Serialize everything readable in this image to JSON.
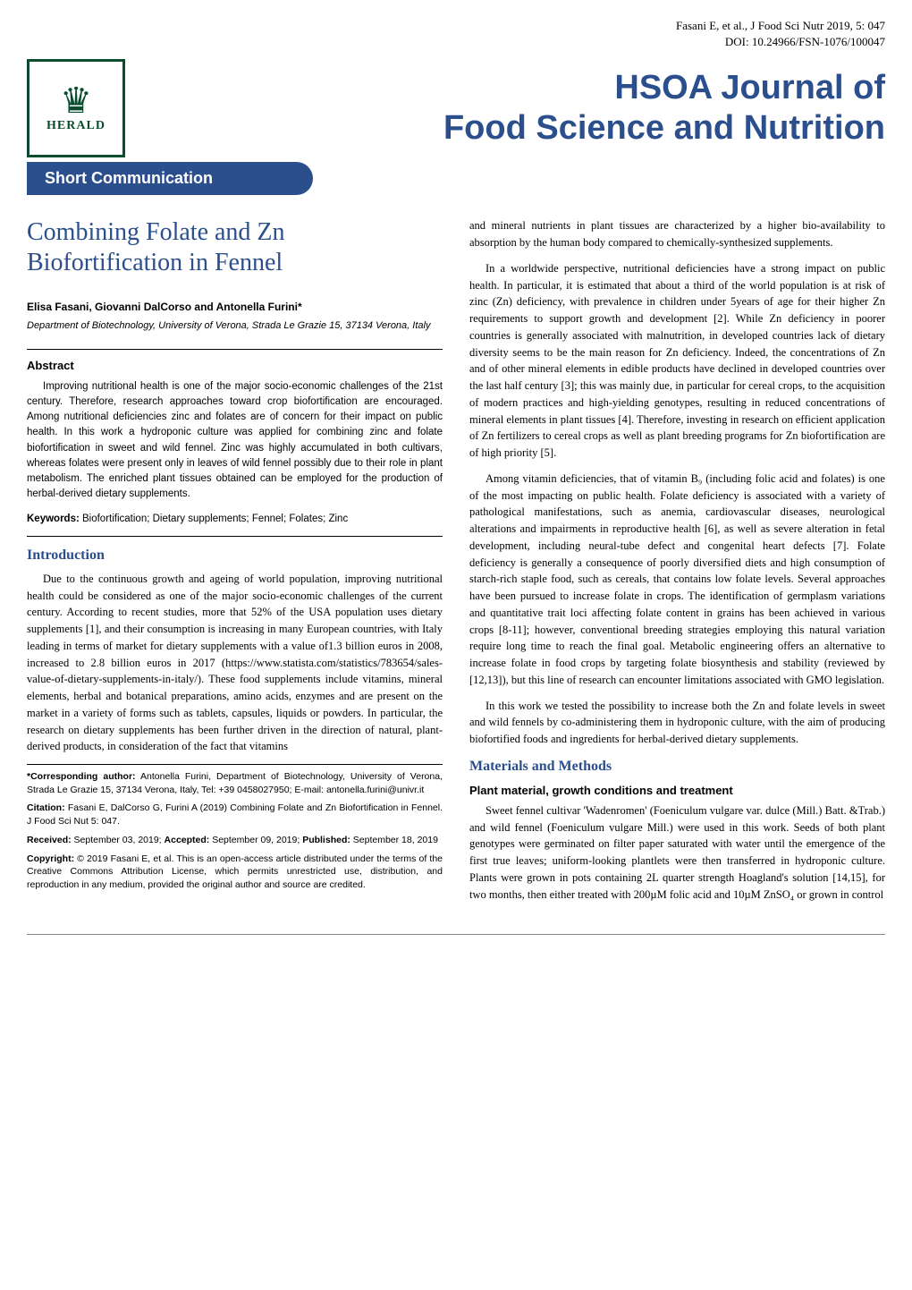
{
  "top_meta": {
    "citation_line": "Fasani E, et al., J Food Sci Nutr 2019, 5: 047",
    "doi_line": "DOI: 10.24966/FSN-1076/100047"
  },
  "logo": {
    "text": "HERALD"
  },
  "journal_title_line1": "HSOA Journal of",
  "journal_title_line2": "Food Science and Nutrition",
  "section_bar": "Short Communication",
  "article_title": "Combining Folate and Zn Biofortification in Fennel",
  "authors": "Elisa Fasani, Giovanni DalCorso and Antonella Furini*",
  "affiliation": "Department of Biotechnology, University of Verona, Strada Le Grazie 15, 37134 Verona, Italy",
  "abstract_heading": "Abstract",
  "abstract_text": "Improving nutritional health is one of the major socio-economic challenges of the 21st century. Therefore, research approaches toward crop biofortification are encouraged. Among nutritional deficiencies zinc and folates are of concern for their impact on public health. In this work a hydroponic culture was applied for combining zinc and folate biofortification in sweet and wild fennel. Zinc was highly accumulated in both cultivars, whereas folates were present only in leaves of wild fennel possibly due to their role in plant metabolism. The enriched plant tissues obtained can be employed for the production of herbal-derived dietary supplements.",
  "keywords_label": "Keywords:",
  "keywords_text": " Biofortification; Dietary supplements; Fennel; Folates; Zinc",
  "intro_heading": "Introduction",
  "intro_p1": "Due to the continuous growth and ageing of world population, improving nutritional health could be considered as one of the major socio-economic challenges of the current century. According to recent studies, more that 52% of the USA population uses dietary supplements [1], and their consumption is increasing in many European countries, with Italy leading in terms of market for dietary supplements with a value of1.3 billion euros in 2008, increased to 2.8 billion euros in 2017 (https://www.statista.com/statistics/783654/sales-value-of-dietary-supplements-in-italy/). These food supplements include vitamins, mineral elements, herbal and botanical preparations, amino acids, enzymes and are present on the market in a variety of forms such as tablets, capsules, liquids or powders. In particular, the research on dietary supplements has been further driven in the direction of natural, plant-derived products, in consideration of the fact that vitamins",
  "right_p1": "and mineral nutrients in plant tissues are characterized by a higher bio-availability to absorption by the human body compared to chemically-synthesized supplements.",
  "right_p2": "In a worldwide perspective, nutritional deficiencies have a strong impact on public health. In particular, it is estimated that about a third of the world population is at risk of zinc (Zn) deficiency, with prevalence in children under 5years of age for their higher Zn requirements to support growth and development [2]. While Zn deficiency in poorer countries is generally associated with malnutrition, in developed countries lack of dietary diversity seems to be the main reason for Zn deficiency. Indeed, the concentrations of Zn and of other mineral elements in edible products have declined in developed countries over the last half century [3]; this was mainly due, in particular for cereal crops, to the acquisition of modern practices and high-yielding genotypes, resulting in reduced concentrations of mineral elements in plant tissues [4]. Therefore, investing in research on efficient application of Zn fertilizers to cereal crops as well as plant breeding programs for Zn biofortification are of high priority [5].",
  "right_p3": "Among vitamin deficiencies, that of vitamin B₉ (including folic acid and folates) is one of the most impacting on public health. Folate deficiency is associated with a variety of pathological manifestations, such as anemia, cardiovascular diseases, neurological alterations and impairments in reproductive health [6], as well as severe alteration in fetal development, including neural-tube defect and congenital heart defects [7]. Folate deficiency is generally a consequence of poorly diversified diets and high consumption of starch-rich staple food, such as cereals, that contains low folate levels. Several approaches have been pursued to increase folate in crops. The identification of germplasm variations and quantitative trait loci affecting folate content in grains has been achieved in various crops [8-11]; however, conventional breeding strategies employing this natural variation require long time to reach the final goal. Metabolic engineering offers an alternative to increase folate in food crops by targeting folate biosynthesis and stability (reviewed by [12,13]), but this line of research can encounter limitations associated with GMO legislation.",
  "right_p4": "In this work we tested the possibility to increase both the Zn and folate levels in sweet and wild fennels by co-administering them in hydroponic culture, with the aim of producing biofortified foods and ingredients for herbal-derived dietary supplements.",
  "methods_heading": "Materials and Methods",
  "methods_sub1": "Plant material, growth conditions and treatment",
  "methods_p1": "Sweet fennel cultivar 'Wadenromen' (Foeniculum vulgare var. dulce (Mill.) Batt. &Trab.) and wild fennel (Foeniculum vulgare Mill.) were used in this work. Seeds of both plant genotypes were germinated on filter paper saturated with water until the emergence of the first true leaves; uniform-looking plantlets were then transferred in hydroponic culture. Plants were grown in pots containing 2L quarter strength Hoagland's solution [14,15], for two months, then either treated with 200µM folic acid and 10µM ZnSO₄ or grown in control",
  "corresponding_label": "*Corresponding author:",
  "corresponding_text": " Antonella Furini, Department of Biotechnology, University of Verona, Strada Le Grazie 15, 37134 Verona, Italy, Tel: +39 0458027950; E-mail: antonella.furini@univr.it",
  "citation_label": "Citation:",
  "citation_text": " Fasani E, DalCorso G, Furini A (2019) Combining Folate and Zn Biofortification in Fennel. J Food Sci Nut 5: 047.",
  "received_label": "Received:",
  "received_text": " September 03, 2019; ",
  "accepted_label": "Accepted:",
  "accepted_text": " September 09, 2019; ",
  "published_label": "Published:",
  "published_text": " September 18, 2019",
  "copyright_label": "Copyright:",
  "copyright_text": " © 2019 Fasani E, et al. This is an open-access article distributed under the terms of the Creative Commons Attribution License, which permits unrestricted use, distribution, and reproduction in any medium, provided the original author and source are credited.",
  "colors": {
    "journal_blue": "#2b4e8c",
    "herald_green": "#0a4d2e",
    "text_black": "#000000",
    "bg_white": "#ffffff",
    "footer_line": "#888888"
  },
  "typography": {
    "journal_title_fontsize": 38,
    "article_title_fontsize": 28,
    "section_heading_fontsize": 16,
    "body_fontsize": 12.5,
    "abstract_fontsize": 11.5,
    "footer_fontsize": 10.5
  }
}
